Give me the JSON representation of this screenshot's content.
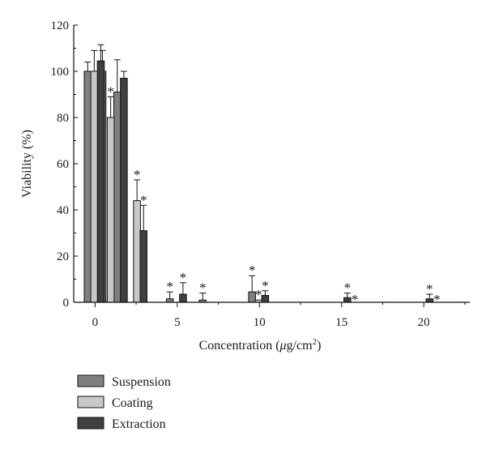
{
  "chart_data": {
    "type": "bar",
    "title": "",
    "xlabel_prefix": "Concentration (",
    "xlabel_mu": "μ",
    "xlabel_unit": "g/cm",
    "xlabel_sup": "2",
    "xlabel_suffix": ")",
    "ylabel": "Viability (%)",
    "xlim": [
      -1.3,
      22.8
    ],
    "ylim": [
      0,
      120
    ],
    "x_ticks": [
      0,
      5,
      10,
      15,
      20
    ],
    "y_ticks": [
      0,
      20,
      40,
      60,
      80,
      100,
      120
    ],
    "minor_ticks": true,
    "grid": false,
    "legend_position": "bottom-left",
    "significance_marker": "*",
    "series": [
      {
        "name": "Suspension",
        "color": "#7f7f7f",
        "points": [
          {
            "x": -0.45,
            "y": 100,
            "err": 4,
            "sig": false
          },
          {
            "x": 0.45,
            "y": 100,
            "err": 9,
            "sig": false
          },
          {
            "x": 1.35,
            "y": 91,
            "err": 14,
            "sig": false
          },
          {
            "x": 4.55,
            "y": 1.5,
            "err": 3,
            "sig": true
          },
          {
            "x": 6.55,
            "y": 1,
            "err": 3,
            "sig": true
          },
          {
            "x": 9.55,
            "y": 4.5,
            "err": 7,
            "sig": true
          }
        ]
      },
      {
        "name": "Coating",
        "color": "#c8c8c8",
        "points": [
          {
            "x": -0.05,
            "y": 100,
            "err": 9,
            "sig": false
          },
          {
            "x": 0.95,
            "y": 80,
            "err": 9,
            "sig": true
          },
          {
            "x": 2.55,
            "y": 44,
            "err": 9,
            "sig": true
          },
          {
            "x": 9.95,
            "y": 1,
            "err": 0,
            "sig": true
          }
        ]
      },
      {
        "name": "Extraction",
        "color": "#3f3f3f",
        "points": [
          {
            "x": 0.35,
            "y": 104.5,
            "err": 7,
            "sig": false
          },
          {
            "x": 1.75,
            "y": 97,
            "err": 3,
            "sig": false
          },
          {
            "x": 2.95,
            "y": 31,
            "err": 11,
            "sig": true
          },
          {
            "x": 5.35,
            "y": 3.5,
            "err": 5,
            "sig": true
          },
          {
            "x": 10.35,
            "y": 3,
            "err": 2,
            "sig": true
          },
          {
            "x": 15.35,
            "y": 2,
            "err": 2,
            "sig": true
          },
          {
            "x": 20.35,
            "y": 1.5,
            "err": 2,
            "sig": true
          }
        ]
      }
    ],
    "extra_markers": [
      {
        "x": 15.8,
        "y": 0,
        "text": "*"
      },
      {
        "x": 20.8,
        "y": 0,
        "text": "*"
      }
    ]
  }
}
